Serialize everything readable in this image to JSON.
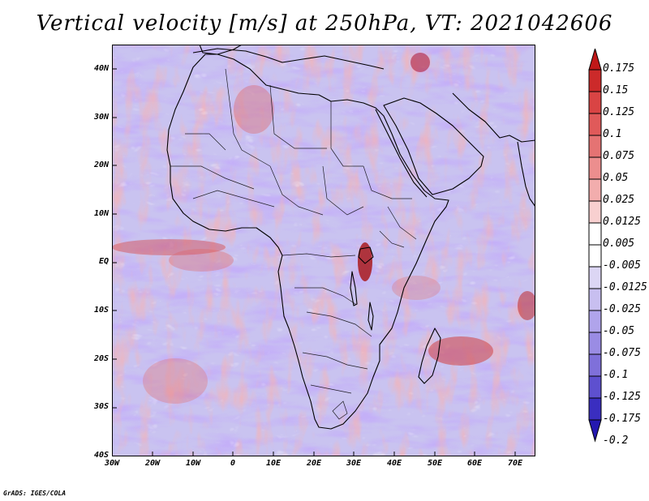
{
  "title": "Vertical velocity [m/s] at 250hPa, VT: 2021042606",
  "credit": "GrADS: IGES/COLA",
  "map": {
    "region": "Africa",
    "variable": "Vertical velocity",
    "units": "m/s",
    "level": "250hPa",
    "valid_time": "2021042606",
    "lon_range": [
      -30,
      75
    ],
    "lat_range": [
      -40,
      45
    ],
    "lat_ticks": [
      "40N",
      "30N",
      "20N",
      "10N",
      "EQ",
      "10S",
      "20S",
      "30S",
      "40S"
    ],
    "lon_ticks": [
      "30W",
      "20W",
      "10W",
      "0",
      "10E",
      "20E",
      "30E",
      "40E",
      "50E",
      "60E",
      "70E"
    ]
  },
  "colorbar": {
    "labels": [
      "0.175",
      "0.15",
      "0.125",
      "0.1",
      "0.075",
      "0.05",
      "0.025",
      "0.0125",
      "0.005",
      "-0.005",
      "-0.0125",
      "-0.025",
      "-0.05",
      "-0.075",
      "-0.1",
      "-0.125",
      "-0.175",
      "-0.2"
    ],
    "colors": [
      "#c01818",
      "#cc2a2a",
      "#d94444",
      "#e05a5a",
      "#e57373",
      "#ec8e8e",
      "#f2adad",
      "#f8d0d0",
      "#ffffff",
      "#ffffff",
      "#dcd6f4",
      "#c8bff0",
      "#b0a4eb",
      "#9a8ce4",
      "#7f70da",
      "#5e50cf",
      "#3a2ec0",
      "#2418b0"
    ]
  }
}
